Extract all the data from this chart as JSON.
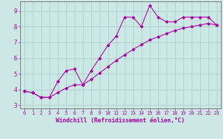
{
  "xlabel": "Windchill (Refroidissement éolien,°C)",
  "background_color": "#cce8e4",
  "grid_color": "#aaccca",
  "line_color": "#aa00aa",
  "axis_color": "#666666",
  "xlim": [
    -0.5,
    23.5
  ],
  "ylim": [
    2.8,
    9.6
  ],
  "xticks": [
    0,
    1,
    2,
    3,
    4,
    5,
    6,
    7,
    8,
    9,
    10,
    11,
    12,
    13,
    14,
    15,
    16,
    17,
    18,
    19,
    20,
    21,
    22,
    23
  ],
  "yticks": [
    3,
    4,
    5,
    6,
    7,
    8,
    9
  ],
  "line1_x": [
    0,
    1,
    2,
    3,
    4,
    5,
    6,
    7,
    8,
    9,
    10,
    11,
    12,
    13,
    14,
    15,
    16,
    17,
    18,
    19,
    20,
    21,
    22,
    23
  ],
  "line1_y": [
    3.9,
    3.8,
    3.5,
    3.5,
    4.5,
    5.2,
    5.3,
    4.3,
    5.2,
    6.0,
    6.8,
    7.4,
    8.6,
    8.6,
    8.0,
    9.35,
    8.6,
    8.3,
    8.3,
    8.6,
    8.6,
    8.6,
    8.6,
    8.1
  ],
  "line2_x": [
    0,
    1,
    2,
    3,
    4,
    5,
    6,
    7,
    8,
    9,
    10,
    11,
    12,
    13,
    14,
    15,
    16,
    17,
    18,
    19,
    20,
    21,
    22,
    23
  ],
  "line2_y": [
    3.9,
    3.8,
    3.5,
    3.5,
    3.8,
    4.1,
    4.3,
    4.3,
    4.65,
    5.05,
    5.45,
    5.85,
    6.2,
    6.55,
    6.85,
    7.15,
    7.35,
    7.55,
    7.75,
    7.9,
    8.0,
    8.1,
    8.2,
    8.1
  ],
  "tick_fontsize": 5.5,
  "xlabel_fontsize": 6.0
}
